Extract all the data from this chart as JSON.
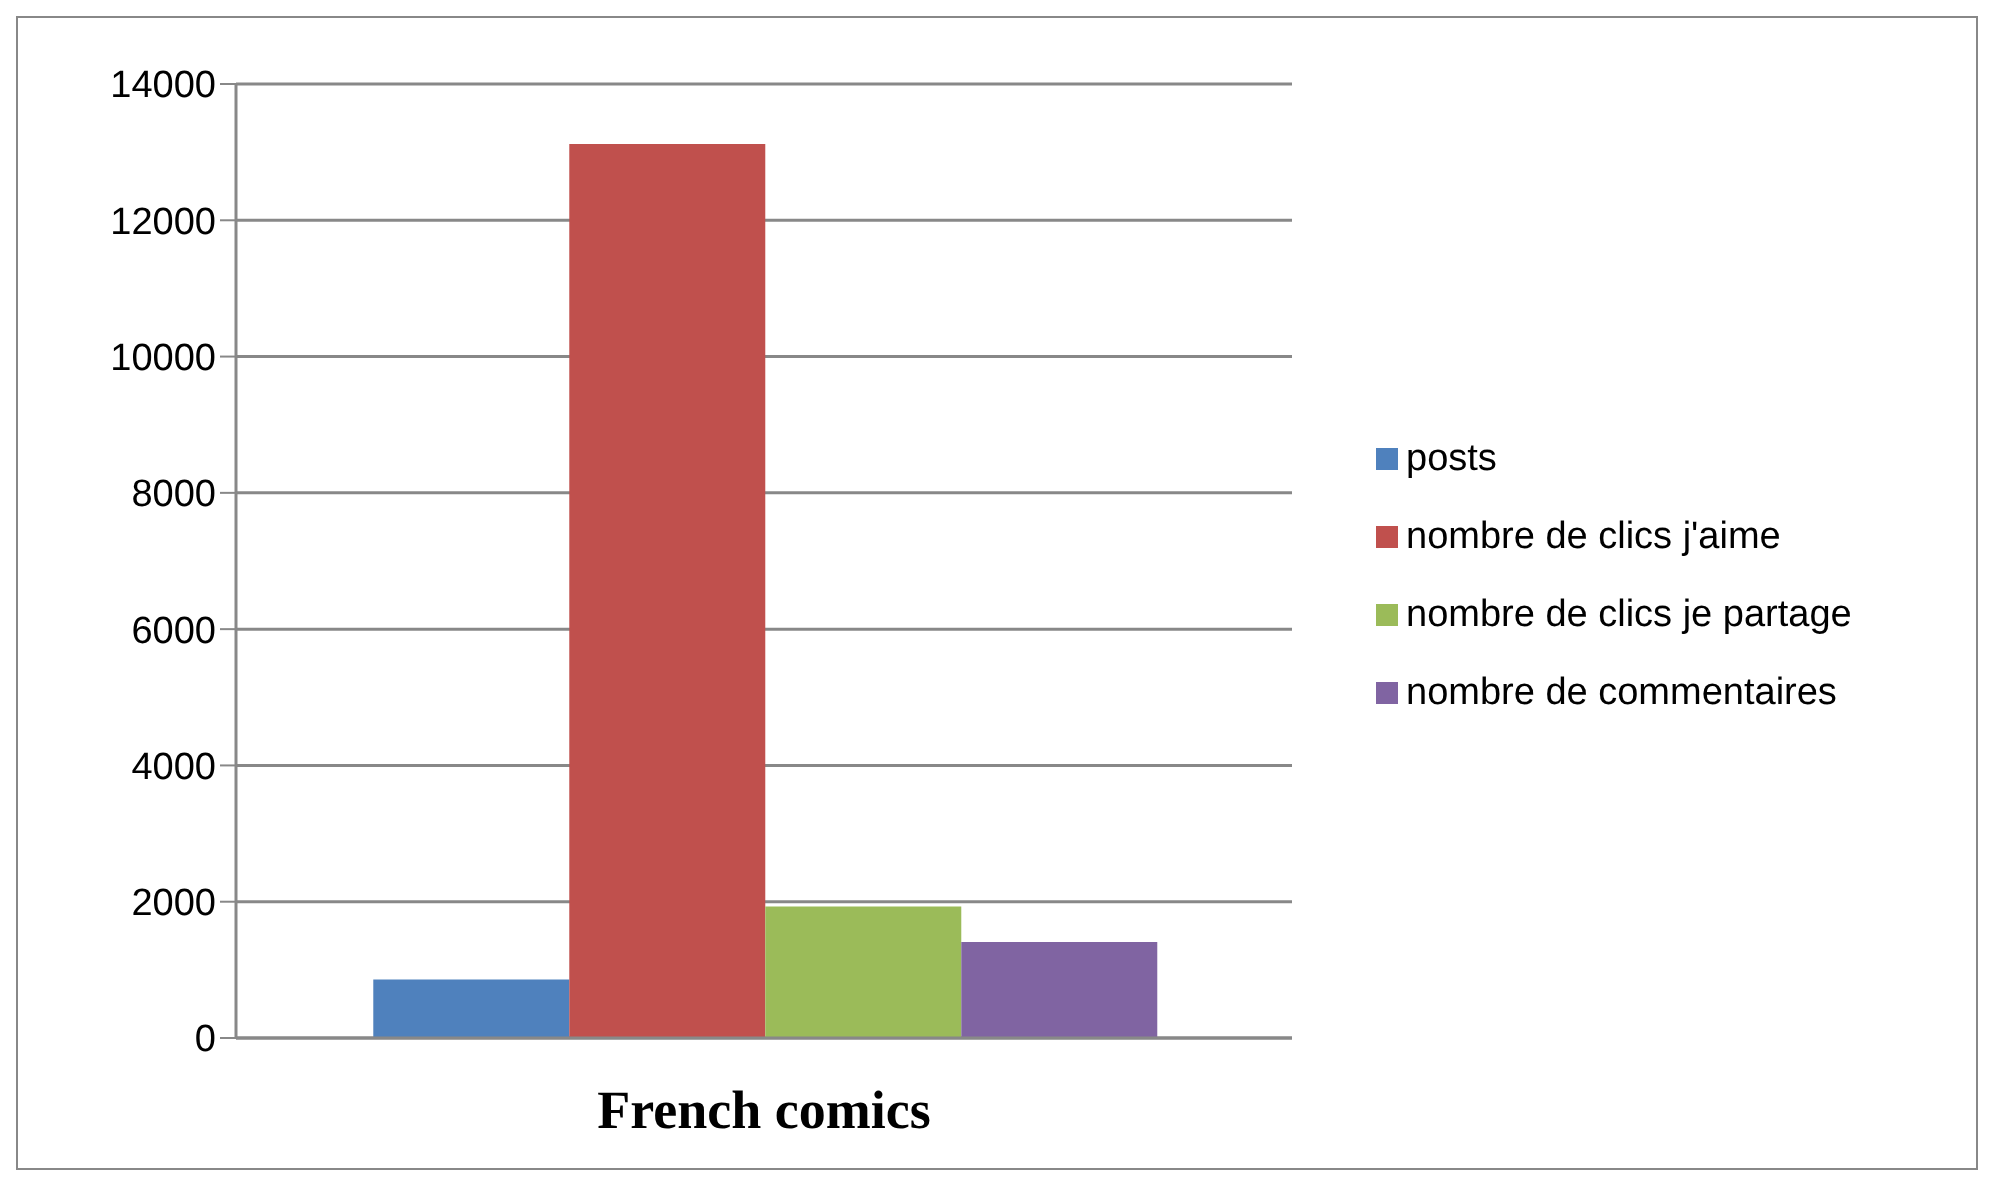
{
  "chart_data": {
    "type": "bar",
    "categories": [
      "French comics"
    ],
    "series": [
      {
        "name": "posts",
        "color": "#4f81bd",
        "values": [
          860
        ]
      },
      {
        "name": "nombre de clics j'aime",
        "color": "#c0504d",
        "values": [
          13120
        ]
      },
      {
        "name": "nombre de clics je partage",
        "color": "#9bbb59",
        "values": [
          1930
        ]
      },
      {
        "name": "nombre de commentaires",
        "color": "#8064a2",
        "values": [
          1410
        ]
      }
    ],
    "ylim": [
      0,
      14000
    ],
    "yticks": [
      0,
      2000,
      4000,
      6000,
      8000,
      10000,
      12000,
      14000
    ],
    "grid": "y",
    "legend": "right"
  }
}
